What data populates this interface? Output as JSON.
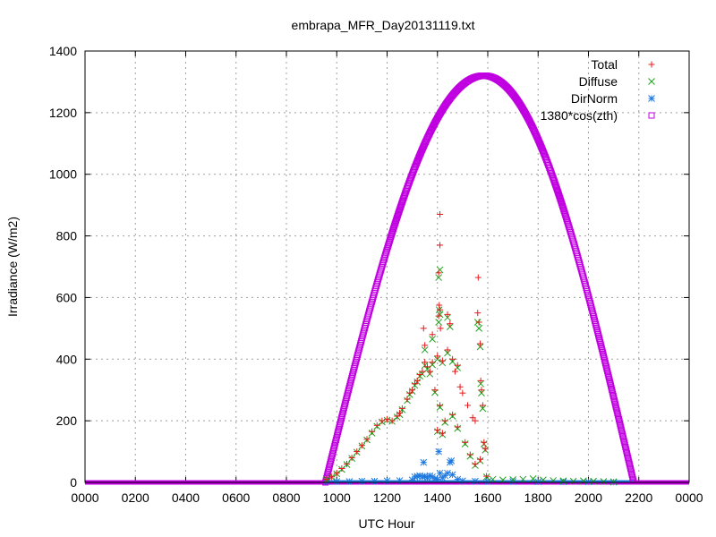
{
  "chart_data": {
    "type": "scatter",
    "title": "embrapa_MFR_Day20131119.txt",
    "xlabel": "UTC Hour",
    "ylabel": "Irradiance (W/m2)",
    "xlim": [
      0,
      24
    ],
    "ylim": [
      0,
      1400
    ],
    "x_tick_labels": [
      "0000",
      "0200",
      "0400",
      "0600",
      "0800",
      "1000",
      "1200",
      "1400",
      "1600",
      "1800",
      "2000",
      "2200",
      "0000"
    ],
    "y_ticks": [
      0,
      200,
      400,
      600,
      800,
      1000,
      1200,
      1400
    ],
    "grid": true,
    "legend_position": "top-right",
    "series": [
      {
        "name": "Total",
        "color": "#e41a1c",
        "marker": "plus",
        "points": [
          [
            9.6,
            10
          ],
          [
            9.8,
            18
          ],
          [
            10.0,
            30
          ],
          [
            10.2,
            45
          ],
          [
            10.4,
            60
          ],
          [
            10.6,
            80
          ],
          [
            10.8,
            100
          ],
          [
            11.0,
            120
          ],
          [
            11.2,
            140
          ],
          [
            11.4,
            165
          ],
          [
            11.6,
            185
          ],
          [
            11.8,
            200
          ],
          [
            12.0,
            205
          ],
          [
            12.2,
            200
          ],
          [
            12.4,
            215
          ],
          [
            12.6,
            240
          ],
          [
            12.8,
            270
          ],
          [
            13.0,
            300
          ],
          [
            13.2,
            330
          ],
          [
            13.4,
            360
          ],
          [
            13.6,
            375
          ],
          [
            13.8,
            390
          ],
          [
            14.0,
            410
          ],
          [
            14.2,
            395
          ],
          [
            14.4,
            430
          ],
          [
            14.6,
            400
          ],
          [
            14.8,
            380
          ],
          [
            12.5,
            225
          ],
          [
            12.9,
            290
          ],
          [
            13.1,
            320
          ],
          [
            13.3,
            350
          ],
          [
            13.5,
            390
          ],
          [
            13.7,
            360
          ],
          [
            13.9,
            300
          ],
          [
            14.1,
            250
          ],
          [
            14.3,
            200
          ],
          [
            13.45,
            500
          ],
          [
            13.5,
            445
          ],
          [
            13.8,
            480
          ],
          [
            14.05,
            540
          ],
          [
            14.07,
            575
          ],
          [
            14.1,
            560
          ],
          [
            14.12,
            500
          ],
          [
            14.05,
            680
          ],
          [
            14.1,
            770
          ],
          [
            14.1,
            870
          ],
          [
            14.4,
            545
          ],
          [
            14.5,
            515
          ],
          [
            14.7,
            360
          ],
          [
            14.9,
            310
          ],
          [
            15.0,
            290
          ],
          [
            15.2,
            250
          ],
          [
            15.4,
            210
          ],
          [
            15.5,
            200
          ],
          [
            15.6,
            550
          ],
          [
            15.62,
            665
          ],
          [
            15.65,
            520
          ],
          [
            15.7,
            450
          ],
          [
            15.72,
            330
          ],
          [
            15.75,
            300
          ],
          [
            15.8,
            250
          ],
          [
            15.85,
            130
          ],
          [
            15.9,
            110
          ],
          [
            14.0,
            170
          ],
          [
            14.2,
            160
          ],
          [
            14.6,
            220
          ],
          [
            14.8,
            180
          ],
          [
            15.1,
            130
          ],
          [
            15.3,
            90
          ],
          [
            15.5,
            60
          ],
          [
            15.7,
            75
          ],
          [
            15.95,
            20
          ]
        ]
      },
      {
        "name": "Diffuse",
        "color": "#1aa01a",
        "marker": "cross",
        "points": [
          [
            9.6,
            9
          ],
          [
            9.8,
            17
          ],
          [
            10.0,
            28
          ],
          [
            10.2,
            42
          ],
          [
            10.4,
            58
          ],
          [
            10.6,
            78
          ],
          [
            10.8,
            98
          ],
          [
            11.0,
            118
          ],
          [
            11.2,
            138
          ],
          [
            11.4,
            160
          ],
          [
            11.6,
            182
          ],
          [
            11.8,
            196
          ],
          [
            12.0,
            202
          ],
          [
            12.2,
            198
          ],
          [
            12.4,
            212
          ],
          [
            12.6,
            236
          ],
          [
            12.8,
            266
          ],
          [
            13.0,
            296
          ],
          [
            13.2,
            326
          ],
          [
            13.4,
            352
          ],
          [
            13.6,
            368
          ],
          [
            13.8,
            382
          ],
          [
            14.0,
            400
          ],
          [
            14.2,
            388
          ],
          [
            14.4,
            420
          ],
          [
            14.6,
            392
          ],
          [
            14.8,
            372
          ],
          [
            12.5,
            220
          ],
          [
            12.9,
            285
          ],
          [
            13.1,
            315
          ],
          [
            13.3,
            345
          ],
          [
            13.5,
            380
          ],
          [
            13.7,
            352
          ],
          [
            13.9,
            292
          ],
          [
            14.1,
            244
          ],
          [
            14.3,
            195
          ],
          [
            13.5,
            430
          ],
          [
            13.8,
            465
          ],
          [
            14.05,
            520
          ],
          [
            14.07,
            560
          ],
          [
            14.1,
            545
          ],
          [
            14.05,
            665
          ],
          [
            14.1,
            690
          ],
          [
            14.4,
            535
          ],
          [
            14.5,
            505
          ],
          [
            15.6,
            520
          ],
          [
            15.65,
            500
          ],
          [
            15.7,
            440
          ],
          [
            15.72,
            320
          ],
          [
            15.75,
            290
          ],
          [
            15.8,
            240
          ],
          [
            15.85,
            125
          ],
          [
            15.9,
            105
          ],
          [
            14.0,
            165
          ],
          [
            14.2,
            155
          ],
          [
            14.6,
            215
          ],
          [
            14.8,
            175
          ],
          [
            15.1,
            125
          ],
          [
            15.3,
            85
          ],
          [
            15.5,
            55
          ],
          [
            15.7,
            70
          ],
          [
            15.95,
            18
          ],
          [
            16.2,
            10
          ],
          [
            16.6,
            8
          ],
          [
            17.0,
            9
          ],
          [
            17.4,
            10
          ],
          [
            17.8,
            12
          ],
          [
            18.2,
            8
          ],
          [
            18.6,
            6
          ],
          [
            19.0,
            5
          ],
          [
            19.4,
            4
          ],
          [
            19.8,
            5
          ],
          [
            20.2,
            4
          ],
          [
            20.6,
            3
          ],
          [
            21.0,
            2
          ]
        ]
      },
      {
        "name": "DirNorm",
        "color": "#1e78e0",
        "marker": "star",
        "points": [
          [
            9.6,
            2
          ],
          [
            10.0,
            3
          ],
          [
            10.5,
            3
          ],
          [
            11.0,
            4
          ],
          [
            11.5,
            4
          ],
          [
            12.0,
            5
          ],
          [
            12.5,
            6
          ],
          [
            13.0,
            8
          ],
          [
            13.1,
            18
          ],
          [
            13.2,
            20
          ],
          [
            13.3,
            22
          ],
          [
            13.4,
            18
          ],
          [
            13.45,
            65
          ],
          [
            13.5,
            20
          ],
          [
            13.6,
            15
          ],
          [
            13.7,
            22
          ],
          [
            13.8,
            18
          ],
          [
            13.9,
            12
          ],
          [
            14.0,
            10
          ],
          [
            14.05,
            100
          ],
          [
            14.1,
            30
          ],
          [
            14.2,
            15
          ],
          [
            14.3,
            22
          ],
          [
            14.4,
            30
          ],
          [
            14.5,
            65
          ],
          [
            14.55,
            70
          ],
          [
            14.6,
            25
          ],
          [
            14.8,
            10
          ],
          [
            15.0,
            5
          ],
          [
            15.5,
            4
          ],
          [
            16.0,
            3
          ],
          [
            17.0,
            3
          ],
          [
            18.0,
            2
          ],
          [
            19.0,
            2
          ],
          [
            20.0,
            2
          ],
          [
            21.0,
            1
          ]
        ]
      },
      {
        "name": "1380*cos(zth)",
        "color": "#c000e0",
        "marker": "square",
        "curve": {
          "peak_x": 15.85,
          "peak_y": 1320,
          "sunrise": 9.55,
          "sunset": 21.8
        }
      }
    ]
  }
}
